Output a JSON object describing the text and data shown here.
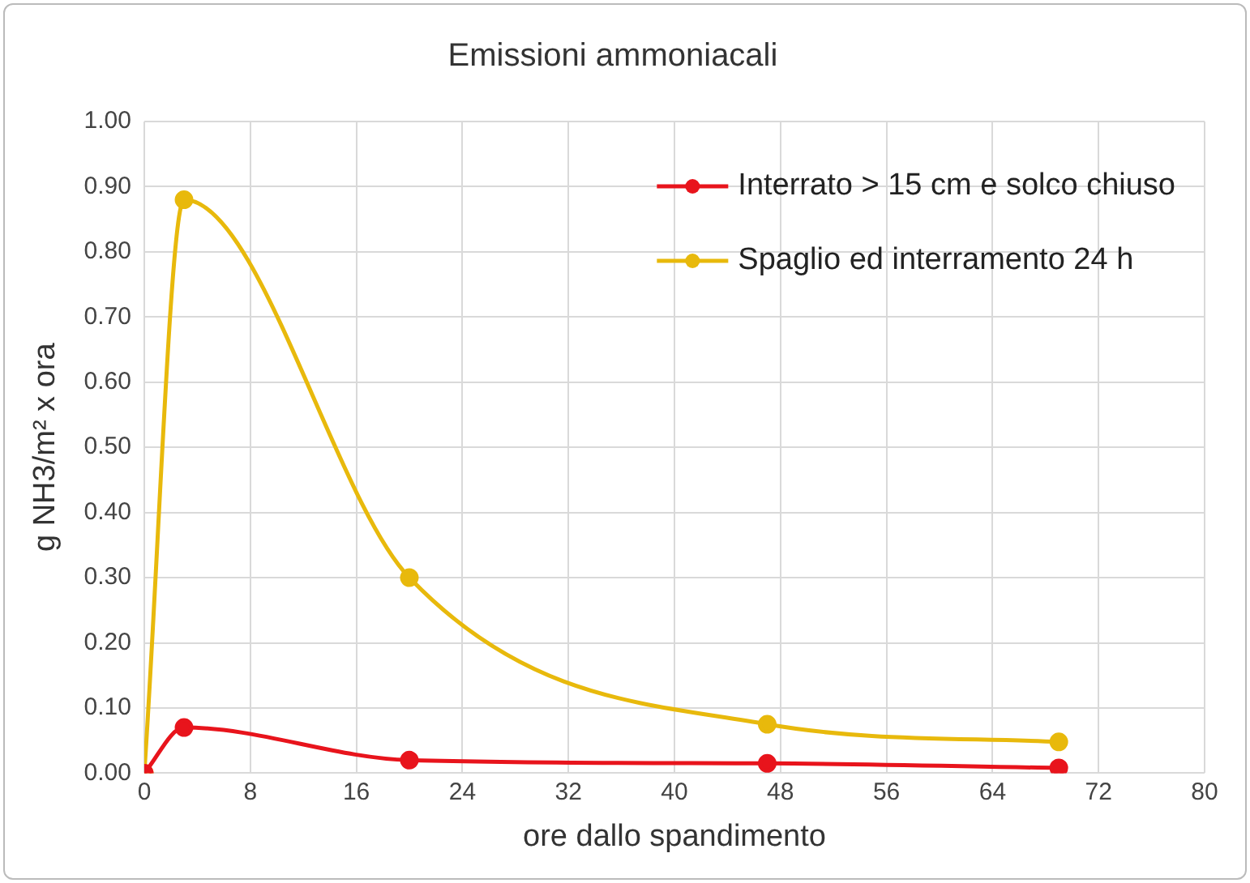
{
  "chart_data": {
    "type": "line",
    "title": "Emissioni ammoniacali",
    "xlabel": "ore dallo spandimento",
    "ylabel": "g NH3/m² x ora",
    "xlim": [
      0,
      80
    ],
    "xticks": [
      0,
      8,
      16,
      24,
      32,
      40,
      48,
      56,
      64,
      72,
      80
    ],
    "ylim": [
      0,
      1
    ],
    "yticks": [
      {
        "value": 0,
        "label": "0.00"
      },
      {
        "value": 0.1,
        "label": "0.10"
      },
      {
        "value": 0.2,
        "label": "0.20"
      },
      {
        "value": 0.3,
        "label": "0.30"
      },
      {
        "value": 0.4,
        "label": "0.40"
      },
      {
        "value": 0.5,
        "label": "0.50"
      },
      {
        "value": 0.6,
        "label": "0.60"
      },
      {
        "value": 0.7,
        "label": "0.70"
      },
      {
        "value": 0.8,
        "label": "0.80"
      },
      {
        "value": 0.9,
        "label": "0.90"
      },
      {
        "value": 1,
        "label": "1.00"
      }
    ],
    "grid": true,
    "legend": "top right",
    "marker": "circle",
    "series": [
      {
        "name": "Interrato > 15 cm e solco chiuso",
        "color": "#e8141c",
        "x": [
          0,
          3,
          20,
          47,
          69
        ],
        "values": [
          0,
          0.07,
          0.02,
          0.015,
          0.008
        ]
      },
      {
        "name": "Spaglio ed interramento 24 h",
        "color": "#e8b90c",
        "x": [
          0,
          3,
          20,
          47,
          69
        ],
        "values": [
          0,
          0.88,
          0.3,
          0.075,
          0.048
        ]
      }
    ]
  }
}
